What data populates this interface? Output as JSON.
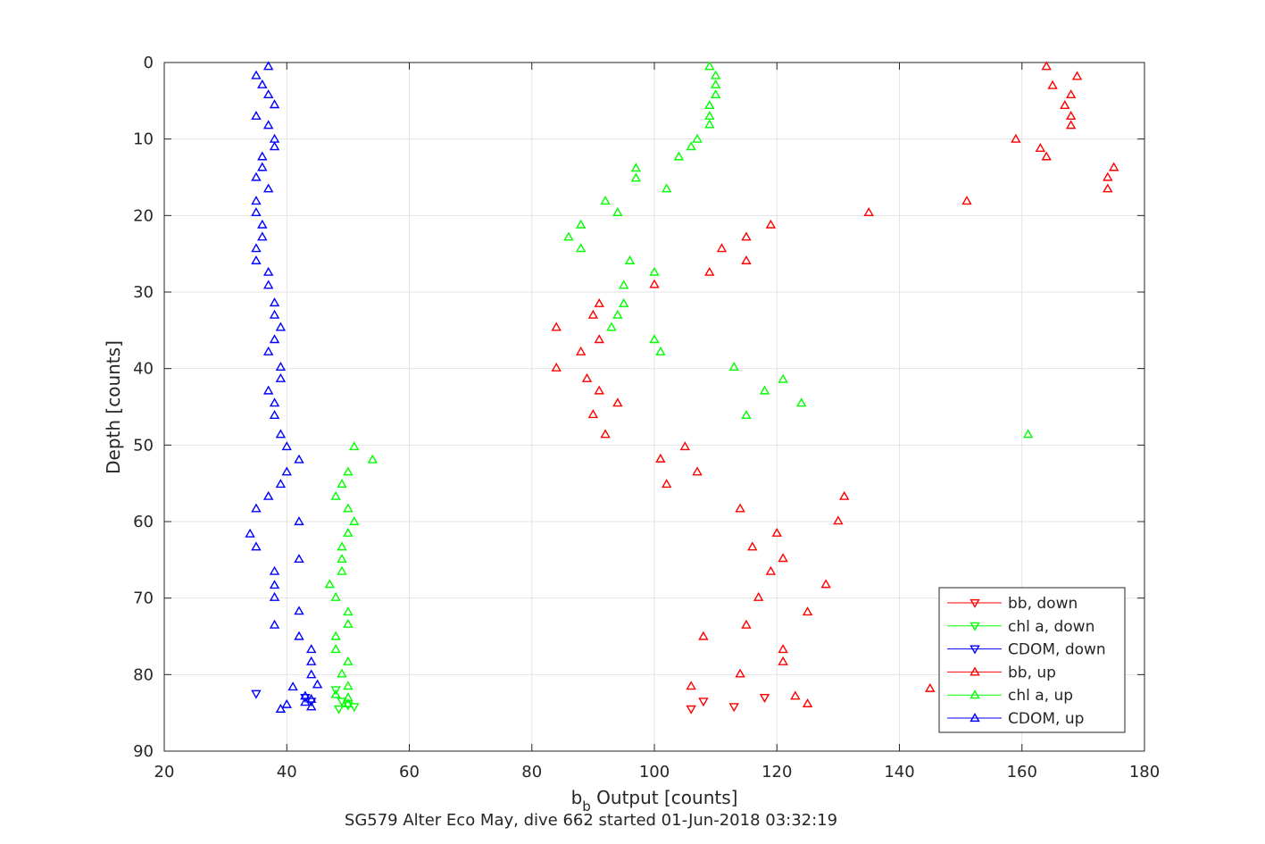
{
  "chart_data": {
    "type": "scatter",
    "title": "",
    "subtitle": "SG579 Alter Eco May, dive 662 started 01-Jun-2018 03:32:19",
    "xlabel_main": "b",
    "xlabel_sub": "b",
    "xlabel_rest": " Output [counts]",
    "ylabel": "Depth [counts]",
    "xlim": [
      20,
      180
    ],
    "ylim": [
      0,
      90
    ],
    "y_reversed": true,
    "grid": true,
    "xticks": [
      "20",
      "40",
      "60",
      "80",
      "100",
      "120",
      "140",
      "160",
      "180"
    ],
    "yticks": [
      "0",
      "10",
      "20",
      "30",
      "40",
      "50",
      "60",
      "70",
      "80",
      "90"
    ],
    "legend_position": "bottom-right",
    "series": [
      {
        "name": "bb, down",
        "color": "#ff0000",
        "marker": "down",
        "points": [
          [
            106,
            84.5
          ],
          [
            108,
            83.5
          ],
          [
            113,
            84.2
          ],
          [
            118,
            83
          ]
        ]
      },
      {
        "name": "chl a, down",
        "color": "#00ff00",
        "marker": "down",
        "points": [
          [
            48,
            82
          ],
          [
            49,
            83.5
          ],
          [
            50,
            84
          ],
          [
            48.5,
            84.5
          ],
          [
            51,
            84.2
          ]
        ]
      },
      {
        "name": "CDOM, down",
        "color": "#0000ff",
        "marker": "down",
        "points": [
          [
            35,
            82.5
          ],
          [
            43,
            83
          ],
          [
            44,
            83.5
          ]
        ]
      },
      {
        "name": "bb, up",
        "color": "#ff0000",
        "marker": "up",
        "points": [
          [
            164,
            0.5
          ],
          [
            169,
            1.8
          ],
          [
            165,
            3
          ],
          [
            168,
            4.2
          ],
          [
            167,
            5.6
          ],
          [
            168,
            7
          ],
          [
            168,
            8.2
          ],
          [
            159,
            10
          ],
          [
            163,
            11.2
          ],
          [
            164,
            12.3
          ],
          [
            175,
            13.7
          ],
          [
            174,
            15
          ],
          [
            174,
            16.5
          ],
          [
            151,
            18.1
          ],
          [
            135,
            19.6
          ],
          [
            119,
            21.2
          ],
          [
            115,
            22.8
          ],
          [
            111,
            24.3
          ],
          [
            115,
            25.9
          ],
          [
            109,
            27.4
          ],
          [
            100,
            29
          ],
          [
            91,
            31.5
          ],
          [
            90,
            33
          ],
          [
            84,
            34.6
          ],
          [
            91,
            36.2
          ],
          [
            88,
            37.8
          ],
          [
            84,
            39.9
          ],
          [
            89,
            41.3
          ],
          [
            91,
            42.9
          ],
          [
            94,
            44.5
          ],
          [
            90,
            46
          ],
          [
            92,
            48.6
          ],
          [
            105,
            50.2
          ],
          [
            101,
            51.8
          ],
          [
            107,
            53.5
          ],
          [
            102,
            55.1
          ],
          [
            131,
            56.7
          ],
          [
            114,
            58.3
          ],
          [
            130,
            59.9
          ],
          [
            120,
            61.5
          ],
          [
            116,
            63.3
          ],
          [
            121,
            64.8
          ],
          [
            119,
            66.5
          ],
          [
            128,
            68.2
          ],
          [
            117,
            69.9
          ],
          [
            125,
            71.8
          ],
          [
            115,
            73.5
          ],
          [
            108,
            75
          ],
          [
            121,
            76.7
          ],
          [
            121,
            78.3
          ],
          [
            114,
            79.9
          ],
          [
            106,
            81.5
          ],
          [
            145,
            81.8
          ],
          [
            123,
            82.8
          ],
          [
            125,
            83.8
          ]
        ]
      },
      {
        "name": "chl a, up",
        "color": "#00ff00",
        "marker": "up",
        "points": [
          [
            109,
            0.5
          ],
          [
            110,
            1.7
          ],
          [
            110,
            2.9
          ],
          [
            110,
            4.2
          ],
          [
            109,
            5.6
          ],
          [
            109,
            7
          ],
          [
            109,
            8.1
          ],
          [
            107,
            10
          ],
          [
            106,
            11
          ],
          [
            104,
            12.3
          ],
          [
            97,
            13.8
          ],
          [
            97,
            15.1
          ],
          [
            102,
            16.5
          ],
          [
            92,
            18.1
          ],
          [
            94,
            19.6
          ],
          [
            88,
            21.2
          ],
          [
            86,
            22.8
          ],
          [
            88,
            24.3
          ],
          [
            96,
            25.9
          ],
          [
            100,
            27.4
          ],
          [
            95,
            29.1
          ],
          [
            95,
            31.5
          ],
          [
            94,
            33
          ],
          [
            93,
            34.6
          ],
          [
            100,
            36.2
          ],
          [
            101,
            37.8
          ],
          [
            113,
            39.8
          ],
          [
            121,
            41.4
          ],
          [
            118,
            42.9
          ],
          [
            124,
            44.5
          ],
          [
            115,
            46.1
          ],
          [
            161,
            48.6
          ],
          [
            51,
            50.2
          ],
          [
            54,
            51.9
          ],
          [
            50,
            53.5
          ],
          [
            49,
            55.1
          ],
          [
            48,
            56.7
          ],
          [
            50,
            58.3
          ],
          [
            51,
            60
          ],
          [
            50,
            61.5
          ],
          [
            49,
            63.3
          ],
          [
            49,
            64.9
          ],
          [
            49,
            66.5
          ],
          [
            47,
            68.2
          ],
          [
            48,
            69.9
          ],
          [
            50,
            71.8
          ],
          [
            50,
            73.4
          ],
          [
            48,
            75
          ],
          [
            48,
            76.7
          ],
          [
            50,
            78.3
          ],
          [
            49,
            79.9
          ],
          [
            50,
            81.5
          ],
          [
            48,
            82.6
          ],
          [
            50,
            83
          ],
          [
            50,
            83.8
          ]
        ]
      },
      {
        "name": "CDOM, up",
        "color": "#0000ff",
        "marker": "up",
        "points": [
          [
            37,
            0.5
          ],
          [
            35,
            1.7
          ],
          [
            36,
            2.9
          ],
          [
            37,
            4.2
          ],
          [
            38,
            5.5
          ],
          [
            35,
            7
          ],
          [
            37,
            8.2
          ],
          [
            38,
            10
          ],
          [
            38,
            11
          ],
          [
            36,
            12.3
          ],
          [
            36,
            13.7
          ],
          [
            35,
            15
          ],
          [
            37,
            16.5
          ],
          [
            35,
            18.1
          ],
          [
            35,
            19.6
          ],
          [
            36,
            21.2
          ],
          [
            36,
            22.8
          ],
          [
            35,
            24.3
          ],
          [
            35,
            25.9
          ],
          [
            37,
            27.4
          ],
          [
            37,
            29.1
          ],
          [
            38,
            31.4
          ],
          [
            38,
            33
          ],
          [
            39,
            34.6
          ],
          [
            38,
            36.2
          ],
          [
            37,
            37.8
          ],
          [
            39,
            39.8
          ],
          [
            39,
            41.3
          ],
          [
            37,
            42.9
          ],
          [
            38,
            44.5
          ],
          [
            38,
            46.1
          ],
          [
            39,
            48.6
          ],
          [
            40,
            50.2
          ],
          [
            42,
            51.9
          ],
          [
            40,
            53.5
          ],
          [
            39,
            55.1
          ],
          [
            37,
            56.7
          ],
          [
            35,
            58.3
          ],
          [
            42,
            60
          ],
          [
            34,
            61.6
          ],
          [
            35,
            63.3
          ],
          [
            42,
            64.9
          ],
          [
            38,
            66.5
          ],
          [
            38,
            68.3
          ],
          [
            38,
            69.9
          ],
          [
            42,
            71.7
          ],
          [
            38,
            73.5
          ],
          [
            42,
            75
          ],
          [
            44,
            76.7
          ],
          [
            44,
            78.3
          ],
          [
            44,
            80
          ],
          [
            45,
            81.3
          ],
          [
            41,
            81.6
          ],
          [
            43,
            82.8
          ],
          [
            44,
            83.2
          ],
          [
            40,
            83.9
          ],
          [
            39,
            84.5
          ],
          [
            44,
            84.2
          ],
          [
            43,
            83.6
          ]
        ]
      }
    ]
  }
}
